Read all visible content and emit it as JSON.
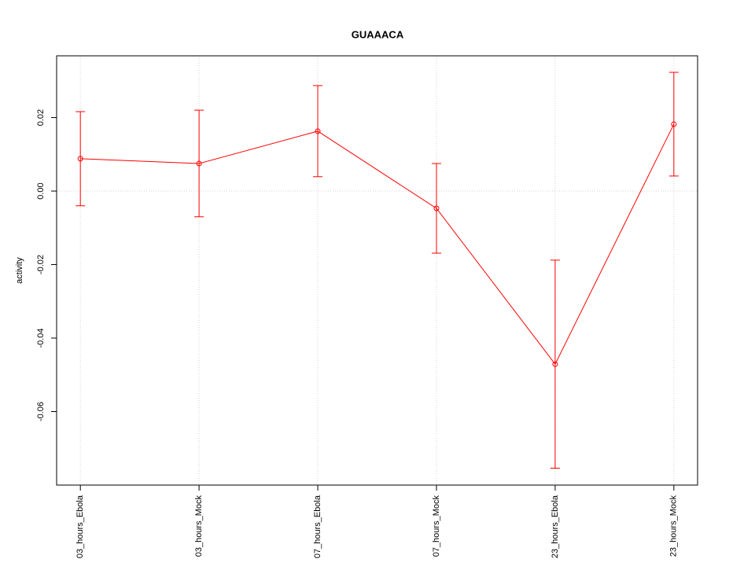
{
  "chart_data": {
    "type": "line",
    "title": "GUAAACA",
    "y_label": "activity",
    "categories": [
      "03_hours_Ebola",
      "03_hours_Mock",
      "07_hours_Ebola",
      "07_hours_Mock",
      "23_hours_Ebola",
      "23_hours_Mock"
    ],
    "series": [
      {
        "color": "#ff0000",
        "values": [
          0.0088,
          0.0075,
          0.0163,
          -0.0047,
          -0.0471,
          0.0182
        ],
        "errors": [
          0.0128,
          0.0145,
          0.0124,
          0.0122,
          0.0283,
          0.0141
        ]
      }
    ],
    "ylim": [
      -0.08,
      0.0368
    ],
    "yticks": [
      -0.06,
      -0.04,
      -0.02,
      {
        "value": 0,
        "label": "0.00"
      },
      0.02
    ],
    "grid_x": true,
    "hline": 0
  }
}
